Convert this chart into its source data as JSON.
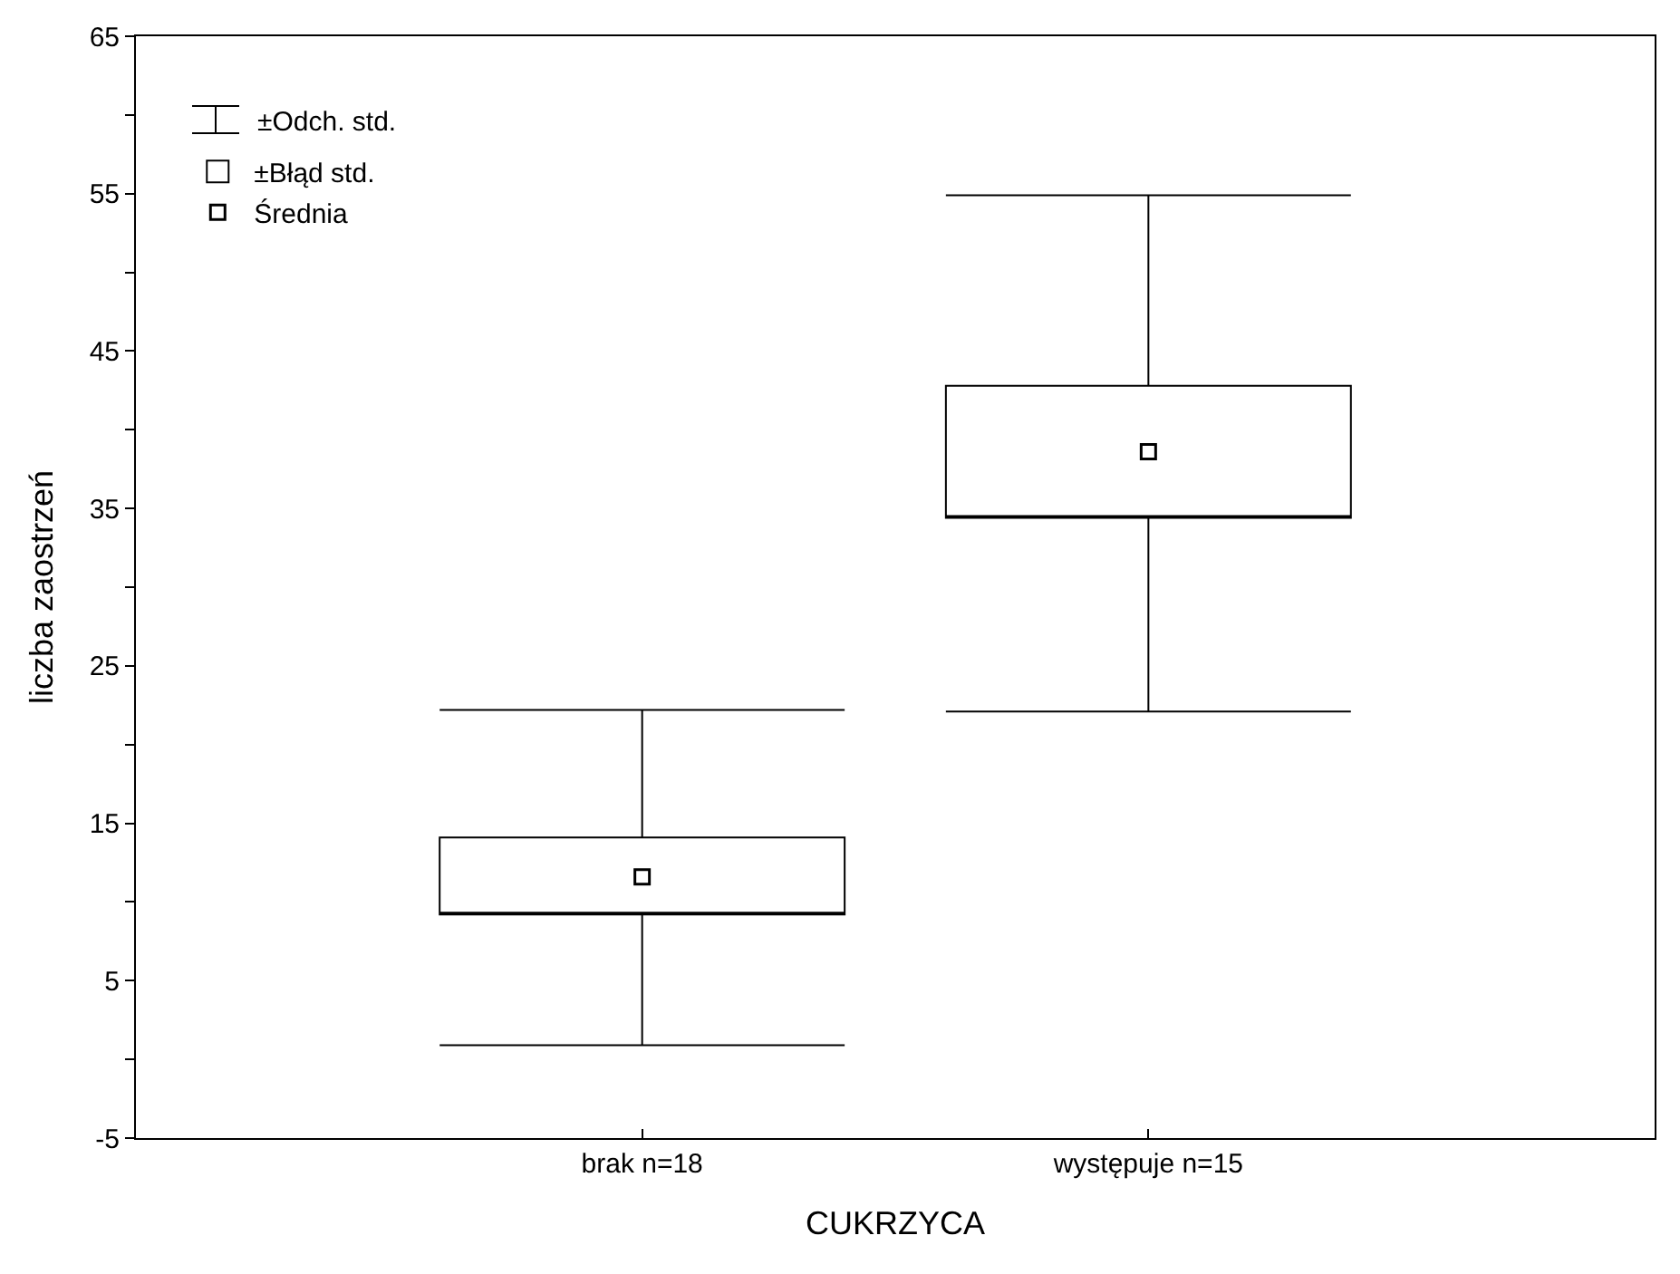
{
  "chart_data": {
    "type": "box",
    "xlabel": "CUKRZYCA",
    "ylabel": "liczba zaostrzeń",
    "categories": [
      "brak n=18",
      "występuje n=15"
    ],
    "annotations": [
      "±Odch. std."
    ],
    "series": [
      {
        "name": "±Błąd std.",
        "color": "#000000",
        "boxes": [
          {
            "low": 0.9,
            "q1": 9.2,
            "q3": 14.1,
            "high": 22.2
          },
          {
            "low": 22.1,
            "q1": 34.4,
            "q3": 42.8,
            "high": 54.9
          }
        ]
      },
      {
        "name": "Średnia",
        "type": "scatter",
        "marker": "square",
        "color": "#000000",
        "values": [
          11.6,
          38.6
        ]
      }
    ],
    "legend": "top left",
    "grid": false,
    "ylim": [
      -5,
      65
    ],
    "yticks": [
      -5,
      {
        "value": 0,
        "label": null
      },
      5,
      {
        "value": 10,
        "label": null
      },
      15,
      {
        "value": 20,
        "label": null
      },
      25,
      {
        "value": 30,
        "label": null
      },
      35,
      {
        "value": 40,
        "label": null
      },
      45,
      {
        "value": 50,
        "label": null
      },
      55,
      {
        "value": 60,
        "label": null
      },
      65
    ]
  }
}
